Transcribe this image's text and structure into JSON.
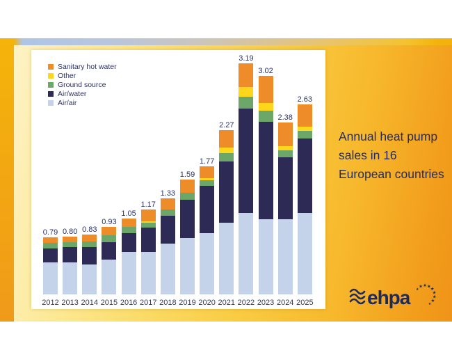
{
  "caption": "Annual heat pump sales in 16 European countries",
  "logo": {
    "text": "ehpa"
  },
  "colors": {
    "sanitary_hot_water": "#ED8C28",
    "other": "#FED61C",
    "ground_source": "#6CA668",
    "air_water": "#2E2A56",
    "air_air": "#C5D3EA",
    "label_navy": "#28306B",
    "caption_navy": "#232C64"
  },
  "chart_data": {
    "type": "bar",
    "stacked": true,
    "unit": "million units",
    "grid": false,
    "legend_position": "top-left",
    "categories": [
      "2012",
      "2013",
      "2014",
      "2015",
      "2016",
      "2017",
      "2018",
      "2019",
      "2020",
      "2021",
      "2022",
      "2023",
      "2024",
      "2025"
    ],
    "series": [
      {
        "name": "Air/air",
        "color": "#C5D3EA",
        "values": [
          0.44,
          0.44,
          0.41,
          0.48,
          0.59,
          0.59,
          0.7,
          0.78,
          0.85,
          0.99,
          1.13,
          1.04,
          1.04,
          1.13
        ]
      },
      {
        "name": "Air/water",
        "color": "#2E2A56",
        "values": [
          0.19,
          0.21,
          0.24,
          0.24,
          0.26,
          0.33,
          0.39,
          0.53,
          0.65,
          0.85,
          1.44,
          1.34,
          0.85,
          1.02
        ]
      },
      {
        "name": "Ground source",
        "color": "#6CA668",
        "values": [
          0.08,
          0.07,
          0.08,
          0.1,
          0.08,
          0.07,
          0.08,
          0.09,
          0.08,
          0.11,
          0.16,
          0.16,
          0.1,
          0.11
        ]
      },
      {
        "name": "Other",
        "color": "#FED61C",
        "values": [
          0.0,
          0.0,
          0.0,
          0.0,
          0.0,
          0.02,
          0.0,
          0.0,
          0.03,
          0.08,
          0.14,
          0.1,
          0.06,
          0.06
        ]
      },
      {
        "name": "Sanitary hot water",
        "color": "#ED8C28",
        "values": [
          0.08,
          0.08,
          0.1,
          0.11,
          0.12,
          0.16,
          0.16,
          0.19,
          0.16,
          0.24,
          0.32,
          0.38,
          0.33,
          0.31
        ]
      }
    ],
    "totals": [
      "0.79",
      "0.80",
      "0.83",
      "0.93",
      "1.05",
      "1.17",
      "1.33",
      "1.59",
      "1.77",
      "2.27",
      "3.19",
      "3.02",
      "2.38",
      "2.63"
    ],
    "ylim": [
      0,
      3.3
    ]
  }
}
